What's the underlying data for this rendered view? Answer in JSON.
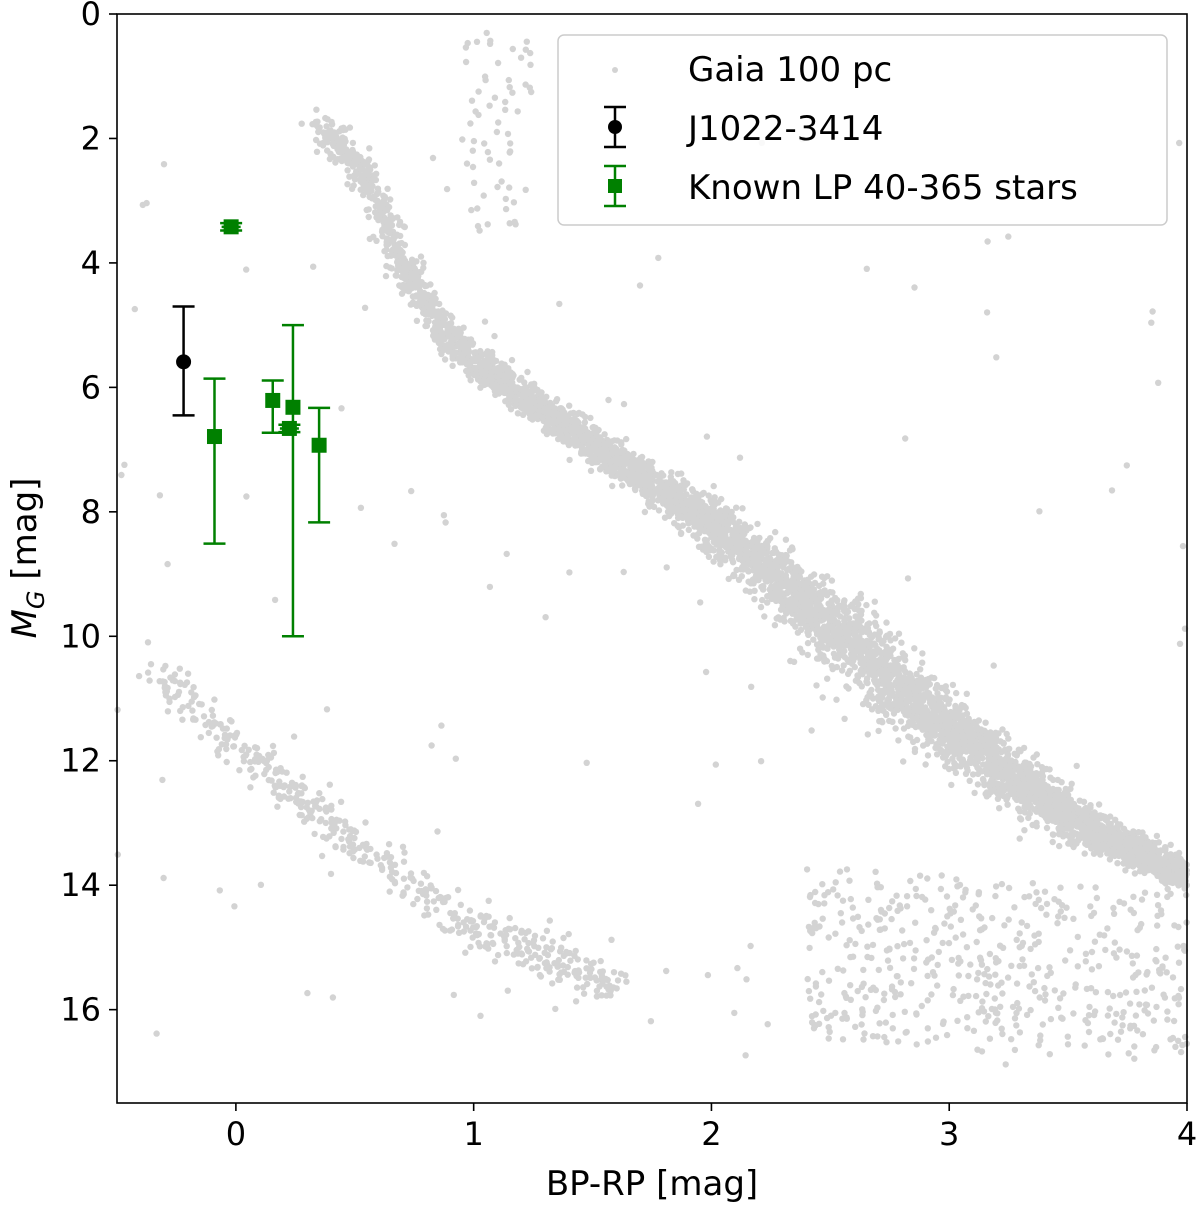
{
  "chart_data": {
    "type": "scatter",
    "xlabel": "BP-RP [mag]",
    "ylabel_main": "M",
    "ylabel_sub": "G",
    "ylabel_unit": " [mag]",
    "xlim": [
      -0.5,
      4
    ],
    "ylim": [
      17.5,
      0
    ],
    "y_inverted": true,
    "grid": false,
    "legend_placement": "top-right",
    "xticks": [
      0,
      1,
      2,
      3,
      4
    ],
    "yticks": [
      0,
      2,
      4,
      6,
      8,
      10,
      12,
      14,
      16
    ],
    "series": [
      {
        "name": "Gaia 100 pc",
        "color": "#d3d3d3",
        "marker": "dot"
      },
      {
        "name": "J1022-3414",
        "color": "#000000",
        "marker": "circle",
        "points": [
          {
            "x": -0.22,
            "y": 5.59,
            "ylo": 4.7,
            "yhi": 6.45
          }
        ]
      },
      {
        "name": "Known LP 40-365 stars",
        "color": "#008000",
        "marker": "square",
        "points": [
          {
            "x": -0.09,
            "y": 6.79,
            "ylo": 5.86,
            "yhi": 8.51
          },
          {
            "x": -0.02,
            "y": 3.42,
            "ylo": 3.36,
            "yhi": 3.48,
            "xerr": 0.04
          },
          {
            "x": 0.155,
            "y": 6.21,
            "ylo": 5.89,
            "yhi": 6.73
          },
          {
            "x": 0.225,
            "y": 6.66,
            "ylo": 6.6,
            "yhi": 6.72,
            "xerr": 0.04
          },
          {
            "x": 0.24,
            "y": 6.32,
            "ylo": 5.0,
            "yhi": 10.0
          },
          {
            "x": 0.35,
            "y": 6.93,
            "ylo": 6.33,
            "yhi": 8.17
          }
        ]
      }
    ]
  }
}
